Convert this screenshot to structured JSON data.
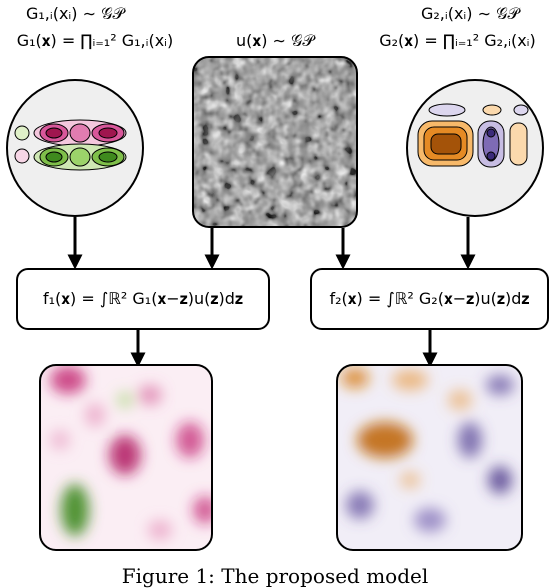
{
  "kernel1": {
    "line1": "G₁,ᵢ(xᵢ) ∼ 𝒢𝒫",
    "line2": "G₁(𝐱) = ∏ᵢ₌₁² G₁,ᵢ(xᵢ)"
  },
  "white_noise": {
    "label": "u(𝐱) ∼ 𝒢𝒫"
  },
  "kernel2": {
    "line1": "G₂,ᵢ(xᵢ) ∼ 𝒢𝒫",
    "line2": "G₂(𝐱) = ∏ᵢ₌₁² G₂,ᵢ(xᵢ)"
  },
  "conv1": {
    "formula": "f₁(𝐱) = ∫ℝ² G₁(𝐱−𝐳)u(𝐳)d𝐳"
  },
  "conv2": {
    "formula": "f₂(𝐱) = ∫ℝ² G₂(𝐱−𝐳)u(𝐳)d𝐳"
  },
  "caption": "Figure 1: The proposed model",
  "colors": {
    "pink": "#c2206e",
    "green": "#5a9a2a",
    "orange": "#d77c10",
    "purple": "#5b4a9a",
    "noise_dark": "#303030",
    "noise_light": "#e6e6e6"
  }
}
